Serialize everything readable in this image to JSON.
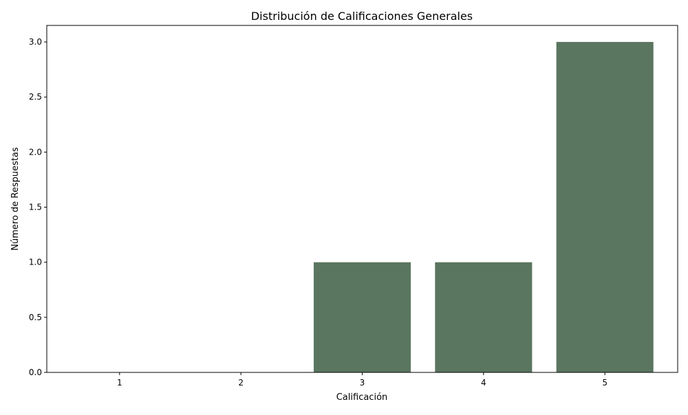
{
  "chart_data": {
    "type": "bar",
    "title": "Distribución de Calificaciones Generales",
    "xlabel": "Calificación",
    "ylabel": "Número de Respuestas",
    "categories": [
      "1",
      "2",
      "3",
      "4",
      "5"
    ],
    "values": [
      0,
      0,
      1,
      1,
      3
    ],
    "ylim": [
      0,
      3.15
    ],
    "yticks": [
      "0.0",
      "0.5",
      "1.0",
      "1.5",
      "2.0",
      "2.5",
      "3.0"
    ],
    "grid": false,
    "colors": {
      "bar": "#5b7660",
      "axis": "#000000",
      "background": "#ffffff"
    }
  }
}
